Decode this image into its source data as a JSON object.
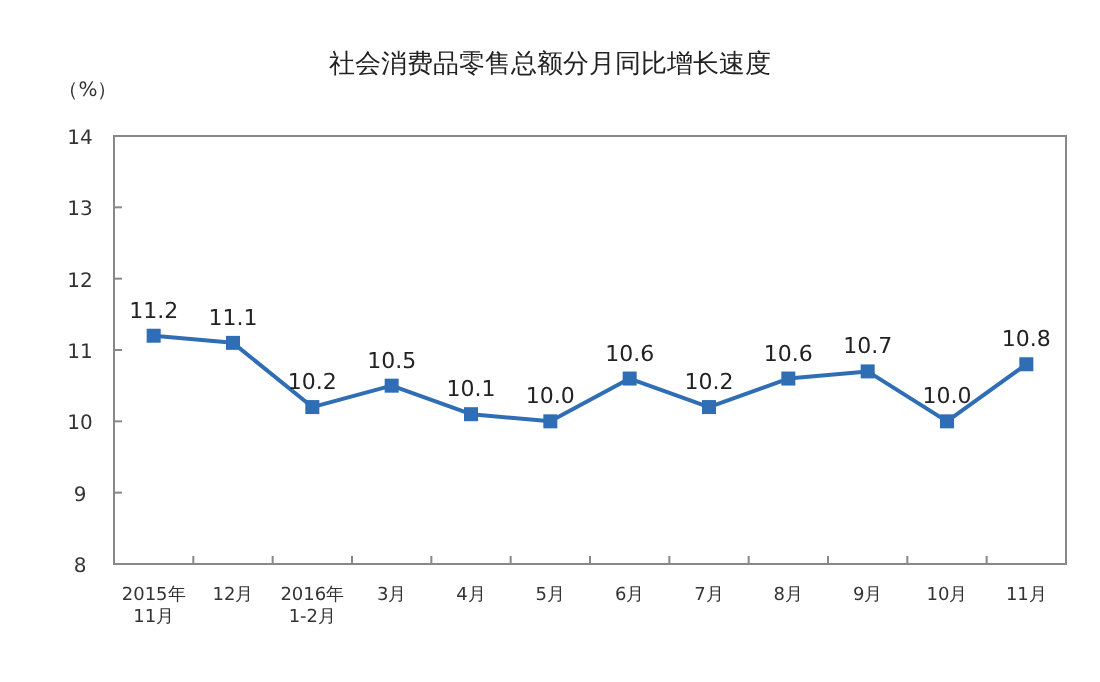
{
  "chart_data": {
    "type": "line",
    "title": "社会消费品零售总额分月同比增长速度",
    "ylabel": "（%）",
    "categories": [
      "2015年\n11月",
      "12月",
      "2016年\n1-2月",
      "3月",
      "4月",
      "5月",
      "6月",
      "7月",
      "8月",
      "9月",
      "10月",
      "11月"
    ],
    "series": [
      {
        "color": "#2f6eb5",
        "values": [
          11.2,
          11.1,
          10.2,
          10.5,
          10.1,
          10.0,
          10.6,
          10.2,
          10.6,
          10.7,
          10.0,
          10.8
        ],
        "value_labels": [
          "11.2",
          "11.1",
          "10.2",
          "10.5",
          "10.1",
          "10.0",
          "10.6",
          "10.2",
          "10.6",
          "10.7",
          "10.0",
          "10.8"
        ]
      }
    ],
    "ylim": [
      8,
      14
    ],
    "yticks": [
      8,
      9,
      10,
      11,
      12,
      13,
      14
    ],
    "marker": "square",
    "line_style": "solid",
    "grid": false
  }
}
